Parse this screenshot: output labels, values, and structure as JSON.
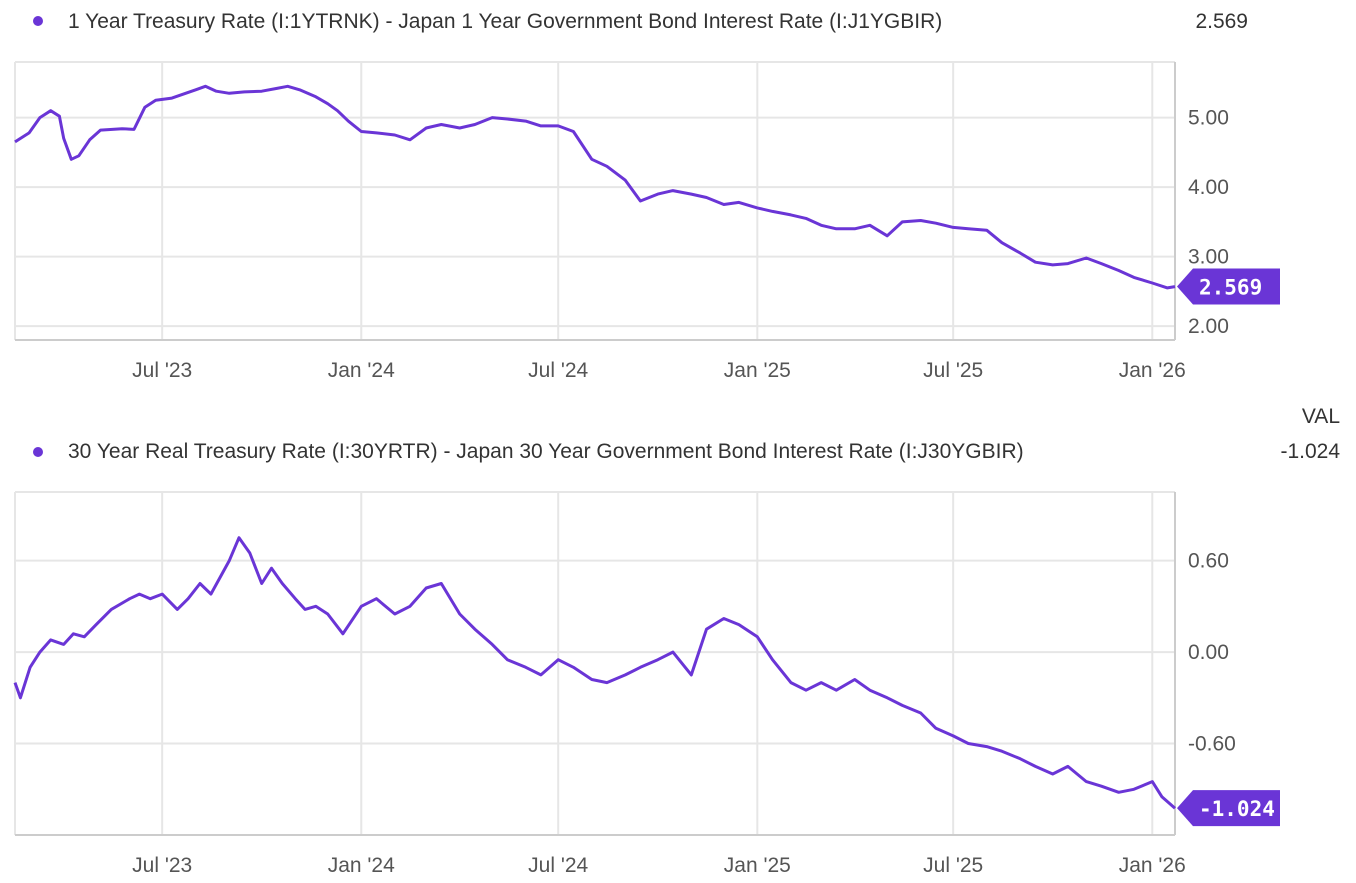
{
  "colors": {
    "line": "#6a35d6",
    "grid": "#e6e6e6",
    "axis": "#cccccc"
  },
  "header": {
    "value_column_label": "VAL"
  },
  "chart_data": [
    {
      "type": "line",
      "legend": "1 Year Treasury Rate (I:1YTRNK) - Japan 1 Year Government Bond Interest Rate (I:J1YGBIR)",
      "latest_value": "2.569",
      "x_ticks": [
        "Jul '23",
        "Jan '24",
        "Jul '24",
        "Jan '25",
        "Jul '25",
        "Jan '26"
      ],
      "x_tick_dates": [
        "2023-07-01",
        "2024-01-01",
        "2024-07-01",
        "2025-01-01",
        "2025-07-01",
        "2026-01-01"
      ],
      "y_ticks": [
        "5.00",
        "4.00",
        "3.00",
        "2.00"
      ],
      "y_tick_values": [
        5,
        4,
        3,
        2
      ],
      "ylim": [
        1.8,
        5.8
      ],
      "xlim": [
        "2023-02-15",
        "2026-01-22"
      ],
      "series": [
        {
          "x": [
            "2023-02-15",
            "2023-02-28",
            "2023-03-10",
            "2023-03-20",
            "2023-03-28",
            "2023-04-01",
            "2023-04-08",
            "2023-04-15",
            "2023-04-25",
            "2023-05-05",
            "2023-05-25",
            "2023-06-05",
            "2023-06-15",
            "2023-06-25",
            "2023-07-10",
            "2023-08-01",
            "2023-08-10",
            "2023-08-20",
            "2023-09-01",
            "2023-09-15",
            "2023-10-01",
            "2023-10-15",
            "2023-10-25",
            "2023-11-05",
            "2023-11-20",
            "2023-12-01",
            "2023-12-10",
            "2023-12-20",
            "2024-01-01",
            "2024-01-15",
            "2024-02-01",
            "2024-02-15",
            "2024-03-01",
            "2024-03-15",
            "2024-04-01",
            "2024-04-15",
            "2024-05-01",
            "2024-05-15",
            "2024-06-01",
            "2024-06-15",
            "2024-07-01",
            "2024-07-15",
            "2024-08-01",
            "2024-08-15",
            "2024-09-01",
            "2024-09-15",
            "2024-10-01",
            "2024-10-15",
            "2024-11-01",
            "2024-11-15",
            "2024-12-01",
            "2024-12-15",
            "2025-01-01",
            "2025-01-15",
            "2025-02-01",
            "2025-02-15",
            "2025-03-01",
            "2025-03-15",
            "2025-04-01",
            "2025-04-15",
            "2025-05-01",
            "2025-05-15",
            "2025-06-01",
            "2025-06-15",
            "2025-07-01",
            "2025-07-15",
            "2025-08-01",
            "2025-08-15",
            "2025-09-01",
            "2025-09-15",
            "2025-10-01",
            "2025-10-15",
            "2025-11-01",
            "2025-11-15",
            "2025-12-01",
            "2025-12-15",
            "2026-01-01",
            "2026-01-15",
            "2026-01-22"
          ],
          "values": [
            4.65,
            4.78,
            5.0,
            5.1,
            5.02,
            4.7,
            4.4,
            4.45,
            4.68,
            4.82,
            4.84,
            4.83,
            5.15,
            5.25,
            5.28,
            5.4,
            5.45,
            5.38,
            5.35,
            5.37,
            5.38,
            5.42,
            5.45,
            5.4,
            5.3,
            5.2,
            5.1,
            4.95,
            4.8,
            4.78,
            4.75,
            4.68,
            4.85,
            4.9,
            4.85,
            4.9,
            5.0,
            4.98,
            4.95,
            4.88,
            4.88,
            4.8,
            4.4,
            4.3,
            4.1,
            3.8,
            3.9,
            3.95,
            3.9,
            3.85,
            3.75,
            3.78,
            3.7,
            3.65,
            3.6,
            3.55,
            3.45,
            3.4,
            3.4,
            3.45,
            3.3,
            3.5,
            3.52,
            3.48,
            3.42,
            3.4,
            3.38,
            3.2,
            3.05,
            2.92,
            2.88,
            2.9,
            2.98,
            2.9,
            2.8,
            2.7,
            2.62,
            2.55,
            2.569
          ]
        }
      ]
    },
    {
      "type": "line",
      "legend": "30 Year Real Treasury Rate (I:30YRTR) - Japan 30 Year Government Bond Interest Rate (I:J30YGBIR)",
      "latest_value": "-1.024",
      "x_ticks": [
        "Jul '23",
        "Jan '24",
        "Jul '24",
        "Jan '25",
        "Jul '25",
        "Jan '26"
      ],
      "x_tick_dates": [
        "2023-07-01",
        "2024-01-01",
        "2024-07-01",
        "2025-01-01",
        "2025-07-01",
        "2026-01-01"
      ],
      "y_ticks": [
        "0.60",
        "0.00",
        "-0.60"
      ],
      "y_tick_values": [
        0.6,
        0.0,
        -0.6
      ],
      "ylim": [
        -1.2,
        1.05
      ],
      "xlim": [
        "2023-02-15",
        "2026-01-22"
      ],
      "series": [
        {
          "x": [
            "2023-02-15",
            "2023-02-20",
            "2023-03-01",
            "2023-03-10",
            "2023-03-20",
            "2023-04-01",
            "2023-04-10",
            "2023-04-20",
            "2023-05-01",
            "2023-05-15",
            "2023-06-01",
            "2023-06-10",
            "2023-06-20",
            "2023-07-01",
            "2023-07-15",
            "2023-07-25",
            "2023-08-05",
            "2023-08-15",
            "2023-09-01",
            "2023-09-10",
            "2023-09-20",
            "2023-10-01",
            "2023-10-10",
            "2023-10-20",
            "2023-11-01",
            "2023-11-10",
            "2023-11-20",
            "2023-12-01",
            "2023-12-15",
            "2024-01-01",
            "2024-01-15",
            "2024-02-01",
            "2024-02-15",
            "2024-03-01",
            "2024-03-15",
            "2024-04-01",
            "2024-04-15",
            "2024-05-01",
            "2024-05-15",
            "2024-06-01",
            "2024-06-15",
            "2024-07-01",
            "2024-07-15",
            "2024-08-01",
            "2024-08-15",
            "2024-09-01",
            "2024-09-15",
            "2024-10-01",
            "2024-10-15",
            "2024-11-01",
            "2024-11-15",
            "2024-12-01",
            "2024-12-15",
            "2025-01-01",
            "2025-01-15",
            "2025-02-01",
            "2025-02-15",
            "2025-03-01",
            "2025-03-15",
            "2025-04-01",
            "2025-04-15",
            "2025-05-01",
            "2025-05-15",
            "2025-06-01",
            "2025-06-15",
            "2025-07-01",
            "2025-07-15",
            "2025-08-01",
            "2025-08-15",
            "2025-09-01",
            "2025-09-15",
            "2025-10-01",
            "2025-10-15",
            "2025-11-01",
            "2025-11-15",
            "2025-12-01",
            "2025-12-15",
            "2026-01-01",
            "2026-01-10",
            "2026-01-22"
          ],
          "values": [
            -0.2,
            -0.3,
            -0.1,
            0.0,
            0.08,
            0.05,
            0.12,
            0.1,
            0.18,
            0.28,
            0.35,
            0.38,
            0.35,
            0.38,
            0.28,
            0.35,
            0.45,
            0.38,
            0.6,
            0.75,
            0.65,
            0.45,
            0.55,
            0.45,
            0.35,
            0.28,
            0.3,
            0.25,
            0.12,
            0.3,
            0.35,
            0.25,
            0.3,
            0.42,
            0.45,
            0.25,
            0.15,
            0.05,
            -0.05,
            -0.1,
            -0.15,
            -0.05,
            -0.1,
            -0.18,
            -0.2,
            -0.15,
            -0.1,
            -0.05,
            0.0,
            -0.15,
            0.15,
            0.22,
            0.18,
            0.1,
            -0.05,
            -0.2,
            -0.25,
            -0.2,
            -0.25,
            -0.18,
            -0.25,
            -0.3,
            -0.35,
            -0.4,
            -0.5,
            -0.55,
            -0.6,
            -0.62,
            -0.65,
            -0.7,
            -0.75,
            -0.8,
            -0.75,
            -0.85,
            -0.88,
            -0.92,
            -0.9,
            -0.85,
            -0.95,
            -1.024
          ]
        }
      ]
    }
  ]
}
